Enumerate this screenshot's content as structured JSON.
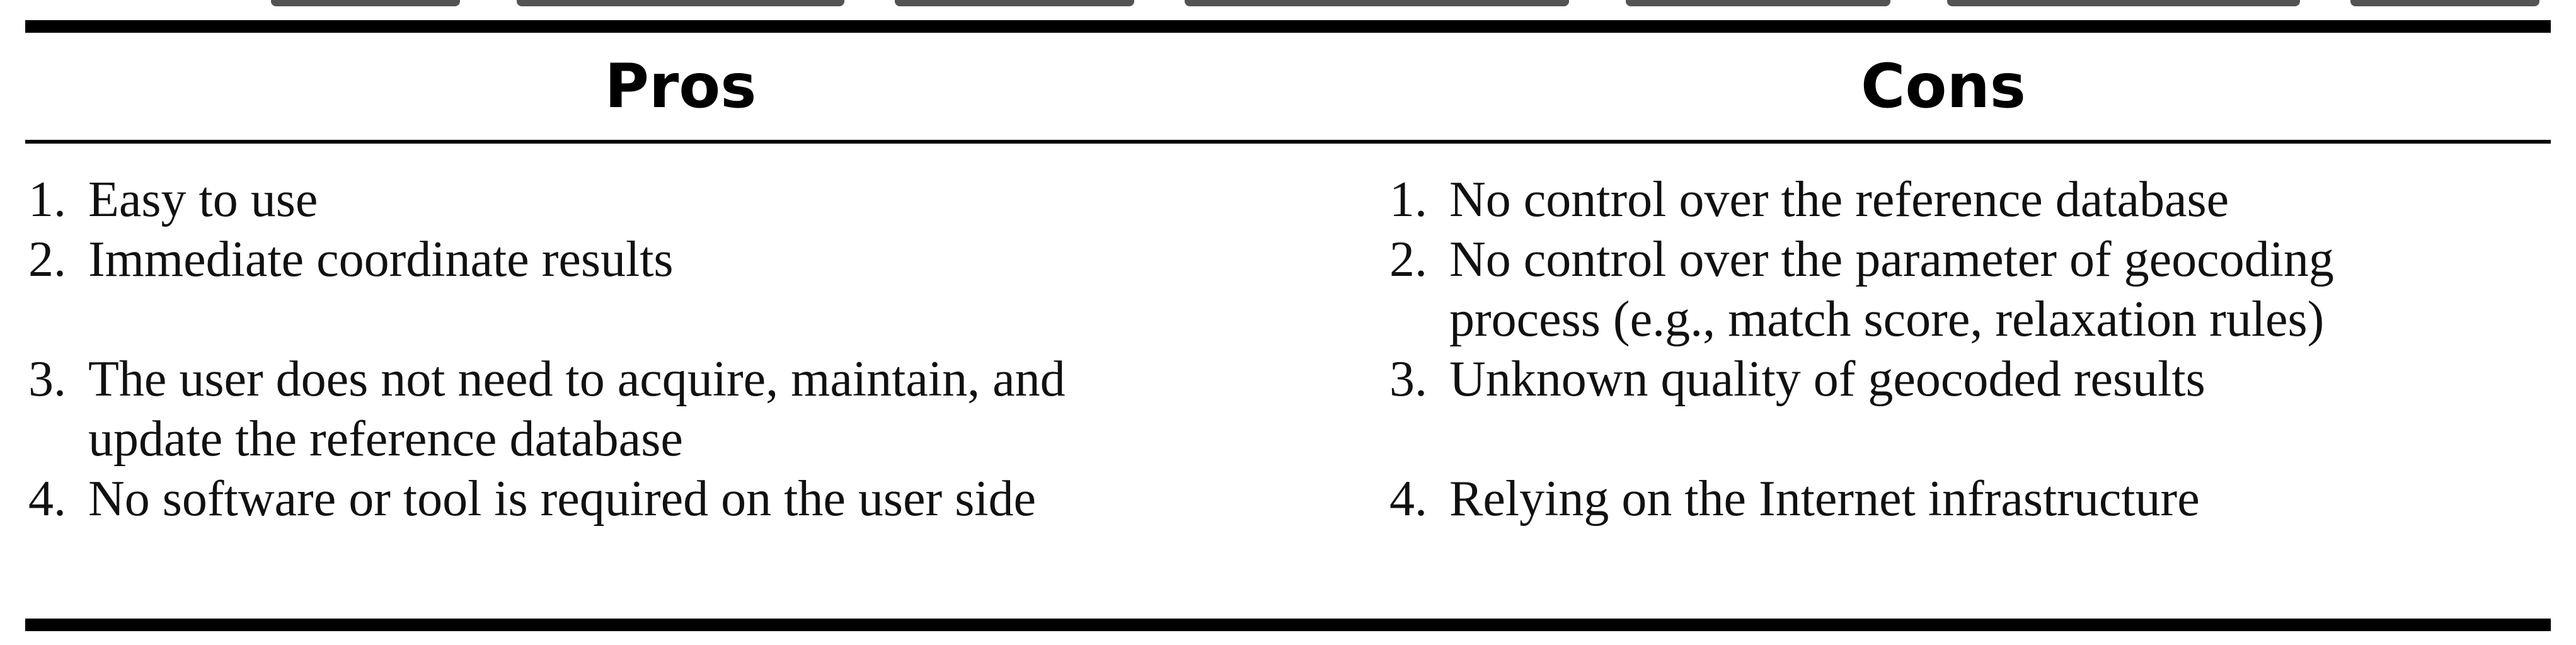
{
  "table": {
    "headers": {
      "pros": "Pros",
      "cons": "Cons"
    },
    "pros": [
      {
        "number": "1.",
        "lines": [
          "Easy to use"
        ]
      },
      {
        "number": "2.",
        "lines": [
          "Immediate coordinate results"
        ]
      },
      {
        "number": "3.",
        "lines": [
          "The user does not need to acquire, maintain, and",
          "update the reference database"
        ]
      },
      {
        "number": "4.",
        "lines": [
          "No software or tool is required on the user side"
        ]
      }
    ],
    "cons": [
      {
        "number": "1.",
        "lines": [
          "No control over the reference database"
        ]
      },
      {
        "number": "2.",
        "lines": [
          "No control over the parameter of geocoding",
          "process (e.g., match score, relaxation rules)"
        ]
      },
      {
        "number": "3.",
        "lines": [
          "Unknown quality of geocoded results"
        ]
      },
      {
        "number": "4.",
        "lines": [
          "Relying on the Internet infrastructure"
        ]
      }
    ]
  }
}
